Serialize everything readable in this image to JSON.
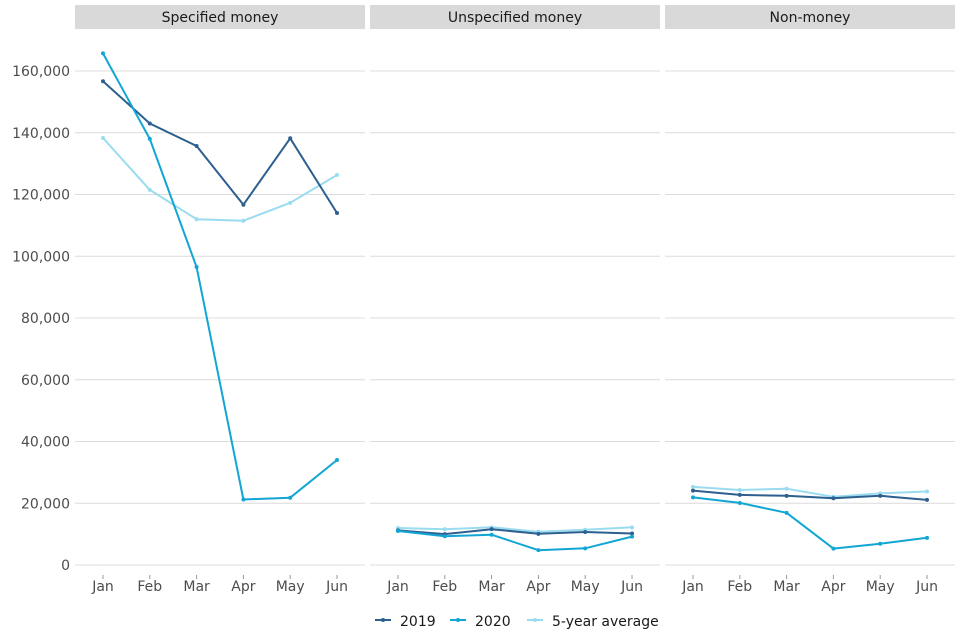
{
  "chart_data": {
    "type": "line",
    "title": "",
    "xlabel": "",
    "ylabel": "",
    "categories": [
      "Jan",
      "Feb",
      "Mar",
      "Apr",
      "May",
      "Jun"
    ],
    "ylim": [
      0,
      170000
    ],
    "yticks": [
      0,
      20000,
      40000,
      60000,
      80000,
      100000,
      120000,
      140000,
      160000
    ],
    "ytick_labels": [
      "0",
      "20,000",
      "40,000",
      "60,000",
      "80,000",
      "100,000",
      "120,000",
      "140,000",
      "160,000"
    ],
    "grid": true,
    "legend_position": "bottom",
    "legend": [
      "2019",
      "2020",
      "5-year average"
    ],
    "colors": {
      "2019": "#2d5f8f",
      "2020": "#11a6d4",
      "5-year average": "#9adcef"
    },
    "panels": [
      {
        "title": "Specified money",
        "series": [
          {
            "name": "2019",
            "values": [
              156700,
              143000,
              135700,
              116700,
              138200,
              114000
            ]
          },
          {
            "name": "2020",
            "values": [
              165700,
              138000,
              96500,
              21200,
              21800,
              34000
            ]
          },
          {
            "name": "5-year average",
            "values": [
              138300,
              121500,
              112000,
              111500,
              117300,
              126300
            ]
          }
        ]
      },
      {
        "title": "Unspecified money",
        "series": [
          {
            "name": "2019",
            "values": [
              11200,
              10000,
              11600,
              10100,
              10700,
              10200
            ]
          },
          {
            "name": "2020",
            "values": [
              11000,
              9300,
              9800,
              4800,
              5400,
              9200
            ]
          },
          {
            "name": "5-year average",
            "values": [
              12000,
              11600,
              12200,
              10800,
              11400,
              12200
            ]
          }
        ]
      },
      {
        "title": "Non-money",
        "series": [
          {
            "name": "2019",
            "values": [
              24100,
              22700,
              22400,
              21600,
              22400,
              21100
            ]
          },
          {
            "name": "2020",
            "values": [
              21900,
              20100,
              16900,
              5300,
              6900,
              8800
            ]
          },
          {
            "name": "5-year average",
            "values": [
              25300,
              24300,
              24700,
              22100,
              23200,
              23800
            ]
          }
        ]
      }
    ]
  }
}
